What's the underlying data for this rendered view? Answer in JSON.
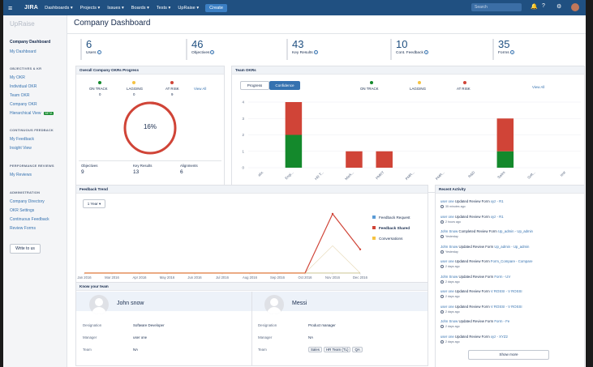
{
  "nav": {
    "logo": "JIRA",
    "menu": [
      "Dashboards ▾",
      "Projects ▾",
      "Issues ▾",
      "Boards ▾",
      "Tests ▾",
      "UpRaise ▾"
    ],
    "create": "Create",
    "search_placeholder": "Search",
    "color": "#205081"
  },
  "sidebar": {
    "logo": "UpRaise",
    "sections": {
      "company_dashboard": "Company Dashboard",
      "my_dashboard": "My Dashboard",
      "objectives_head": "OBJECTIVES & KR",
      "my_okr": "My OKR",
      "individual_okr": "Individual OKR",
      "team_okr": "Team OKR",
      "company_okr": "Company OKR",
      "hierarchical_view": "Hierarchical View",
      "beta": "BETA",
      "feedback_head": "CONTINUOUS FEEDBACK",
      "my_feedback": "My Feedback",
      "insight_view": "Insight View",
      "performance_head": "PERFORMANCE REVIEWS",
      "my_reviews": "My Reviews",
      "admin_head": "ADMINISTRATION",
      "company_directory": "Company Directory",
      "okr_settings": "OKR Settings",
      "continuous_feedback": "Continuous Feedback",
      "review_forms": "Review Forms"
    },
    "write_to_us": "Write to us"
  },
  "main": {
    "title": "Company Dashboard",
    "stats": [
      {
        "value": "6",
        "label": "Users"
      },
      {
        "value": "46",
        "label": "Objectives"
      },
      {
        "value": "43",
        "label": "Key Results"
      },
      {
        "value": "10",
        "label": "Cont. Feedback"
      },
      {
        "value": "35",
        "label": "Forms"
      }
    ]
  },
  "okr_progress": {
    "title": "Overall Company OKRs Progress",
    "on_track_label": "ON TRACK",
    "on_track": "0",
    "lagging_label": "LAGGING",
    "lagging": "0",
    "at_risk_label": "AT RISK",
    "at_risk": "9",
    "view_all": "View All",
    "percent": 16,
    "percent_label": "16%",
    "objectives_label": "Objectives",
    "objectives": "9",
    "key_results_label": "Key Results",
    "key_results": "13",
    "alignments_label": "Alignments",
    "alignments": "6"
  },
  "team_okrs": {
    "title": "Team OKRs",
    "tabs": [
      "Progress",
      "Confidence"
    ],
    "on_track_label": "ON TRACK",
    "lagging_label": "LAGGING",
    "at_risk_label": "AT RISK",
    "view_all": "View All"
  },
  "chart_data": [
    {
      "type": "bar",
      "stacked": true,
      "categories": [
        "abc",
        "Engi...",
        "HR T...",
        "Mark...",
        "PMRT",
        "PMR...",
        "PMR...",
        "R&D",
        "Sales",
        "Soft...",
        "test"
      ],
      "series": [
        {
          "values": [
            0,
            2,
            0,
            0,
            0,
            0,
            0,
            0,
            1,
            0,
            0
          ],
          "color": "#14892c"
        },
        {
          "values": [
            0,
            2,
            0,
            1,
            1,
            0,
            0,
            0,
            2,
            0,
            0
          ],
          "color": "#d04437"
        }
      ],
      "yticks": [
        "0",
        "1",
        "2",
        "3",
        "4"
      ],
      "ylim": [
        0,
        4
      ]
    },
    {
      "type": "line",
      "categories": [
        "Jan 2016",
        "Mar 2016",
        "Apr 2016",
        "May 2016",
        "Jun 2016",
        "Jul 2016",
        "Aug 2016",
        "Sep 2016",
        "Oct 2016",
        "Nov 2016",
        "Dec 2016"
      ],
      "series": [
        {
          "name": "Feedback Request",
          "color": "#5b9bd5",
          "values": [
            0,
            0,
            0,
            0,
            0,
            0,
            0,
            0,
            0,
            0,
            0
          ]
        },
        {
          "name": "Feedback Shared",
          "color": "#d04437",
          "values": [
            0,
            0,
            0,
            0,
            0,
            0,
            0,
            0,
            0,
            5,
            2
          ]
        },
        {
          "name": "Conversations",
          "color": "#f6c342",
          "values": [
            0,
            0,
            0,
            0,
            0,
            0,
            0,
            0,
            0,
            0,
            0
          ]
        }
      ],
      "ylim": [
        0,
        5
      ]
    }
  ],
  "feedback_trend": {
    "title": "Feedback Trend",
    "range": "1 Year ▾"
  },
  "recent_activity": {
    "title": "Recent Activity",
    "items": [
      {
        "who": "user one",
        "action": "Updated Review Form",
        "target": "xyz - R1",
        "time": "35 minutes ago"
      },
      {
        "who": "user one",
        "action": "Updated Review Form",
        "target": "xyz - R1",
        "time": "2 hours ago"
      },
      {
        "who": "John Snow",
        "action": "Completed Review Form",
        "target": "Up_admin - Up_admin",
        "time": "Yesterday"
      },
      {
        "who": "John Snow",
        "action": "Updated Review Form",
        "target": "Up_admin - Up_admin",
        "time": "Yesterday"
      },
      {
        "who": "user one",
        "action": "Updated Review Form",
        "target": "Form_Compare - Compare",
        "time": "2 days ago"
      },
      {
        "who": "John Snow",
        "action": "Updated Review Form",
        "target": "Form - UV",
        "time": "2 days ago"
      },
      {
        "who": "user one",
        "action": "Updated Review Form",
        "target": "V ROSSI - V ROSSI",
        "time": "2 days ago"
      },
      {
        "who": "user one",
        "action": "Updated Review Form",
        "target": "V ROSSI - V ROSSI",
        "time": "2 days ago"
      },
      {
        "who": "John Snow",
        "action": "Updated Review Form",
        "target": "Form - Fe",
        "time": "2 days ago"
      },
      {
        "who": "user one",
        "action": "Updated Review Form",
        "target": "xyz - XYZ2",
        "time": "2 days ago"
      }
    ],
    "show_more": "Show more"
  },
  "know_your_team": {
    "title": "Know your team",
    "members": [
      {
        "name": "John snow",
        "designation": "Software Developer",
        "manager": "user one",
        "team": "NA",
        "tags": []
      },
      {
        "name": "Messi",
        "designation": "Product manager",
        "manager": "NA",
        "team": "",
        "tags": [
          "Sales",
          "HR Team (TL)",
          "QA"
        ]
      }
    ],
    "labels": {
      "designation": "Designation",
      "manager": "Manager",
      "team": "Team"
    }
  }
}
